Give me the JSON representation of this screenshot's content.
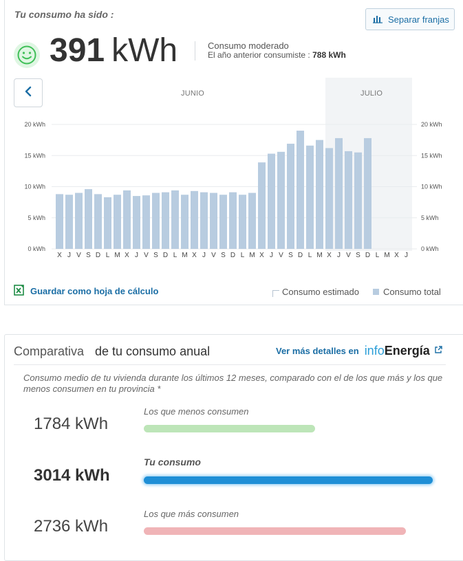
{
  "header": {
    "consumption_label": "Tu consumo ha sido :",
    "split_button_label": "Separar franjas",
    "total_value": "391",
    "total_unit": "kWh",
    "status_text": "Consumo moderado",
    "previous_year_label": "El año anterior consumiste :",
    "previous_year_value": "788 kWh",
    "status_icon": "smiley-face-icon"
  },
  "navigation": {
    "back_icon": "chevron-left-icon",
    "months": [
      "JUNIO",
      "JULIO"
    ]
  },
  "chart_data": {
    "type": "bar",
    "categories": [
      "X",
      "J",
      "V",
      "S",
      "D",
      "L",
      "M",
      "X",
      "J",
      "V",
      "S",
      "D",
      "L",
      "M",
      "X",
      "J",
      "V",
      "S",
      "D",
      "L",
      "M",
      "X",
      "J",
      "V",
      "S",
      "D",
      "L",
      "M",
      "X",
      "J",
      "V",
      "S",
      "D",
      "L",
      "M",
      "X",
      "J"
    ],
    "series": [
      {
        "name": "Consumo total",
        "values": [
          8.8,
          8.7,
          9.0,
          9.6,
          8.8,
          8.3,
          8.7,
          9.4,
          8.5,
          8.6,
          9.0,
          9.1,
          9.4,
          8.7,
          9.3,
          9.1,
          9.0,
          8.7,
          9.1,
          8.7,
          9.0,
          13.9,
          15.3,
          15.6,
          16.9,
          19.0,
          16.6,
          17.5,
          16.2,
          17.8,
          15.7,
          15.5,
          17.8,
          null,
          null,
          null,
          null
        ],
        "color": "#b8cce0"
      }
    ],
    "ylim": [
      0,
      20
    ],
    "yticks": [
      "0 kWh",
      "5 kWh",
      "10 kWh",
      "15 kWh",
      "20 kWh"
    ],
    "grid": true,
    "legend": [
      "Consumo estimado",
      "Consumo total"
    ],
    "legend_position": "bottom-right"
  },
  "footer": {
    "save_label": "Guardar como hoja de cálculo",
    "save_icon": "spreadsheet-icon",
    "legend_estimated": "Consumo estimado",
    "legend_total": "Consumo total"
  },
  "comparison": {
    "title_light": "Comparativa",
    "title_bold": "de tu consumo anual",
    "details_label": "Ver más detalles en",
    "brand_info": "info",
    "brand_energia": "Energía",
    "external_icon": "external-link-icon",
    "description": "Consumo medio de tu vivienda durante los últimos 12 meses, comparado con el de los que más y los que menos consumen en tu provincia *",
    "rows": [
      {
        "value": "1784 kWh",
        "label": "Los que menos consumen",
        "amount": 1784,
        "color": "#bde5b8"
      },
      {
        "value": "3014 kWh",
        "label": "Tu consumo",
        "amount": 3014,
        "color": "#1f8fd6"
      },
      {
        "value": "2736 kWh",
        "label": "Los que más consumen",
        "amount": 2736,
        "color": "#f0b4b7"
      }
    ]
  },
  "colors": {
    "accent": "#1b6ea5",
    "chart_bar": "#b8cce0",
    "smiley": "#3fbf57"
  }
}
